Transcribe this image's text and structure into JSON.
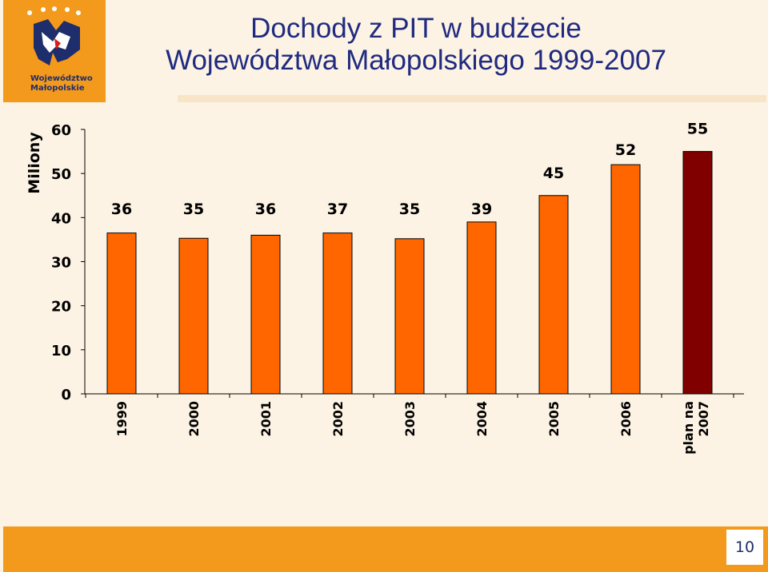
{
  "logo": {
    "line1": "Województwo",
    "line2": "Małopolskie",
    "icon": "malopolska-emblem-icon"
  },
  "title": {
    "line1": "Dochody z PIT w budżecie",
    "line2": "Województwa Małopolskiego 1999-2007"
  },
  "page_number": "10",
  "colors": {
    "bar": "#ff6600",
    "bar_plan": "#800000",
    "accent": "#f39a1c",
    "title": "#1f2a80",
    "background": "#fdf3e4"
  },
  "chart_data": {
    "type": "bar",
    "ylabel": "Miliony",
    "ylim": [
      0,
      60
    ],
    "yticks": [
      0,
      10,
      20,
      30,
      40,
      50,
      60
    ],
    "grid": false,
    "categories": [
      "1999",
      "2000",
      "2001",
      "2002",
      "2003",
      "2004",
      "2005",
      "2006",
      "plan na 2007"
    ],
    "values": [
      36.5,
      35.3,
      36,
      36.5,
      35.2,
      39,
      45,
      52,
      55
    ],
    "data_labels": [
      "36",
      "35",
      "36",
      "37",
      "35",
      "39",
      "45",
      "52",
      "55"
    ],
    "highlight_index": 8
  }
}
